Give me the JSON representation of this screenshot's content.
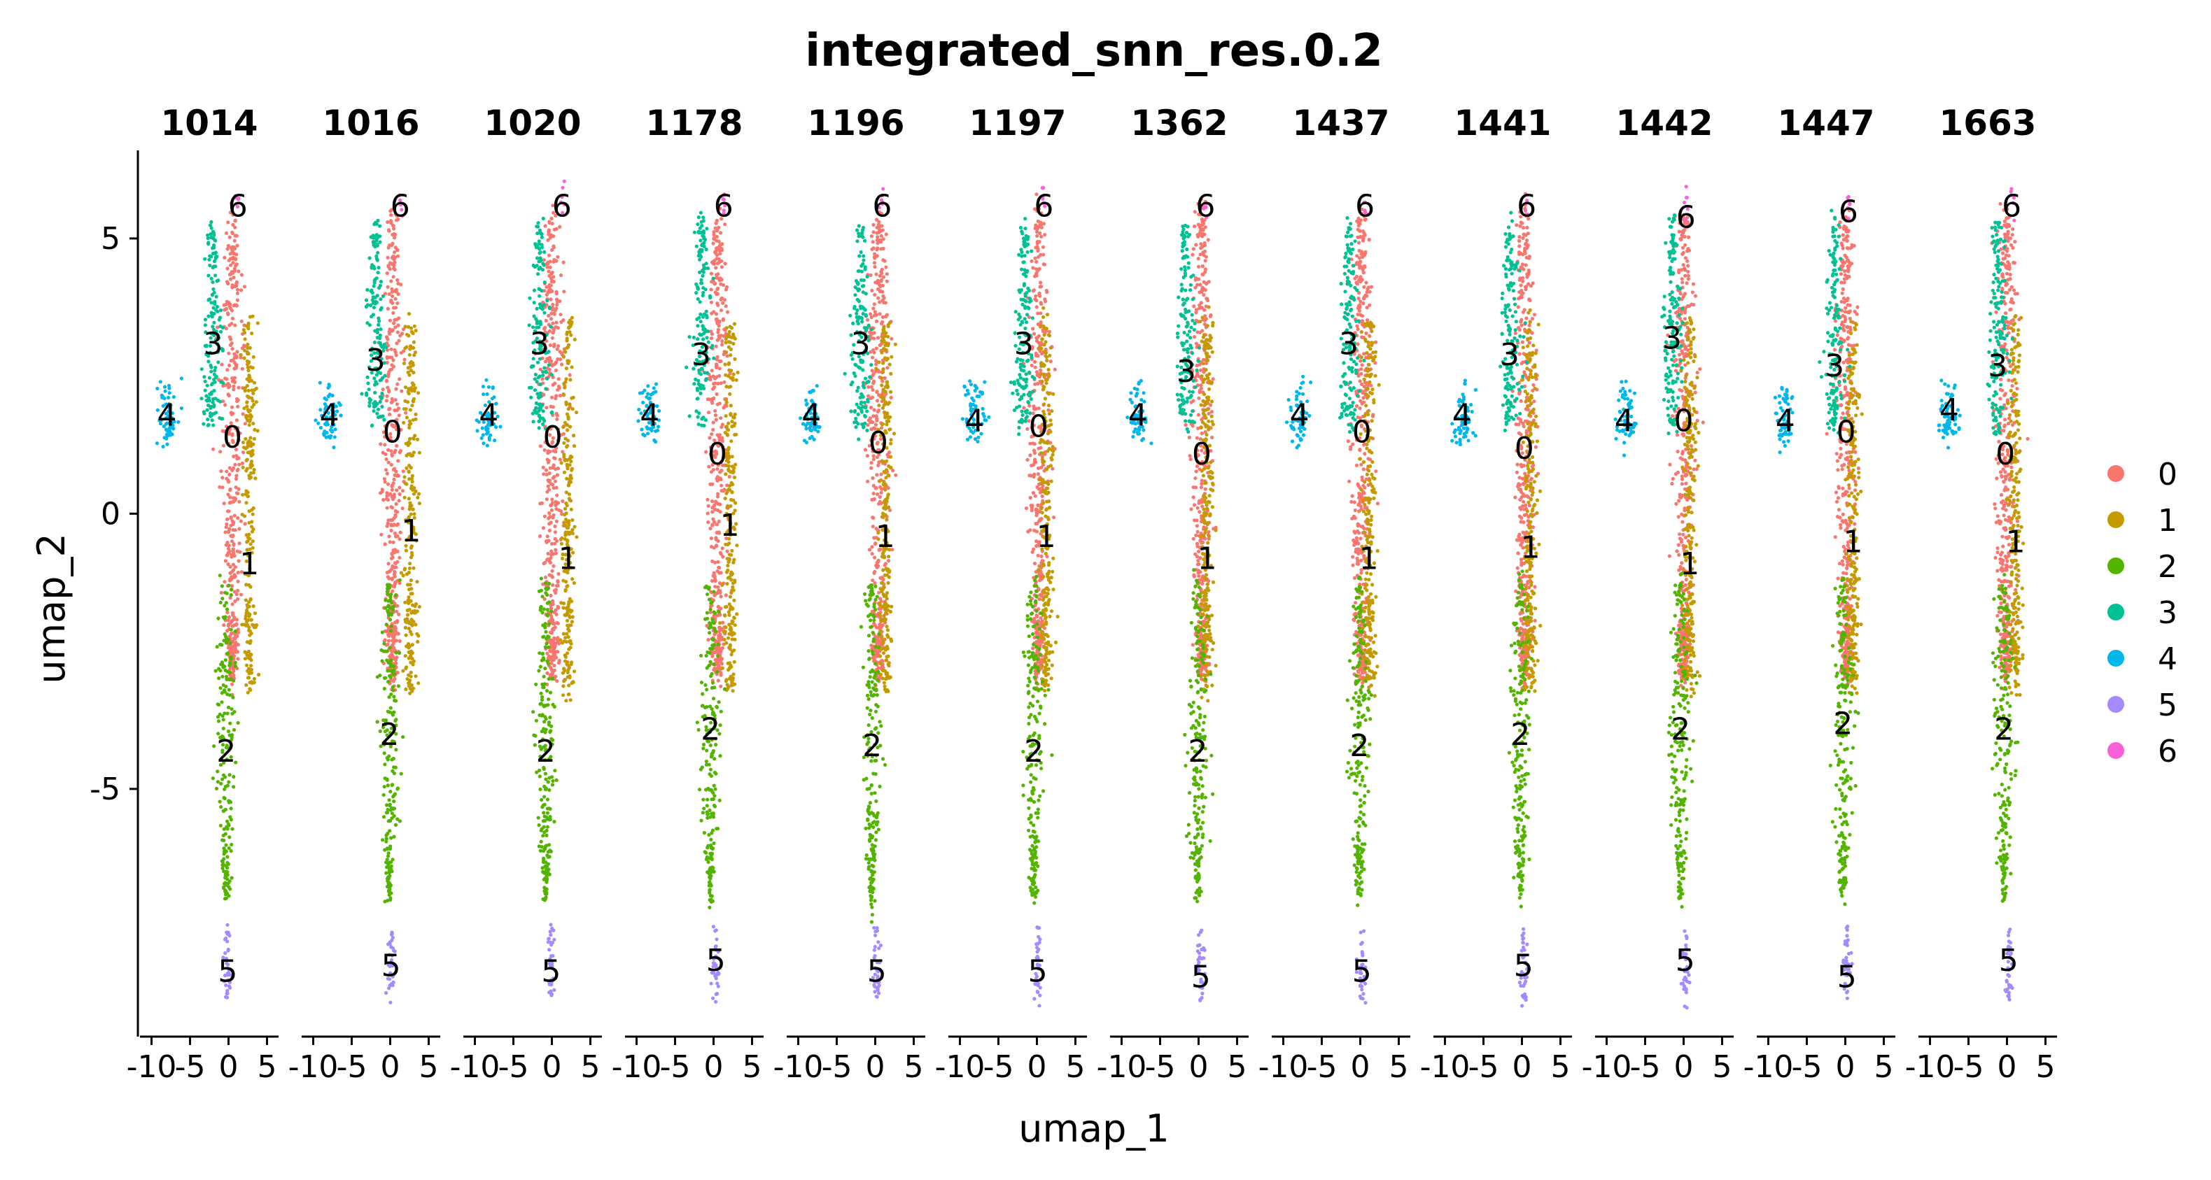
{
  "chart_data": {
    "type": "scatter",
    "title": "integrated_snn_res.0.2",
    "xlabel": "umap_1",
    "ylabel": "umap_2",
    "xlim": [
      -11.5,
      6.5
    ],
    "ylim": [
      -9.5,
      6.6
    ],
    "x_ticks": [
      -10,
      -5,
      0,
      5
    ],
    "x_tick_labels": [
      "-10",
      "-5",
      "0",
      "5"
    ],
    "y_ticks": [
      5,
      0,
      -5
    ],
    "y_tick_labels": [
      "5",
      "0",
      "-5"
    ],
    "grid": false,
    "legend_position": "right",
    "facets": [
      "1014",
      "1016",
      "1020",
      "1178",
      "1196",
      "1197",
      "1362",
      "1437",
      "1441",
      "1442",
      "1447",
      "1663"
    ],
    "series": [
      {
        "name": "0",
        "color": "#F8766D"
      },
      {
        "name": "1",
        "color": "#C49A00"
      },
      {
        "name": "2",
        "color": "#53B400"
      },
      {
        "name": "3",
        "color": "#00C094"
      },
      {
        "name": "4",
        "color": "#00B6EB"
      },
      {
        "name": "5",
        "color": "#A58AFF"
      },
      {
        "name": "6",
        "color": "#FB61D7"
      }
    ],
    "cluster_label_positions": {
      "1014": {
        "0": [
          0.5,
          1.4
        ],
        "1": [
          2.7,
          -0.9
        ],
        "2": [
          -0.3,
          -4.3
        ],
        "3": [
          -2.0,
          3.1
        ],
        "4": [
          -8.0,
          1.8
        ],
        "5": [
          -0.1,
          -8.3
        ],
        "6": [
          1.2,
          5.6
        ]
      },
      "1016": {
        "0": [
          0.3,
          1.5
        ],
        "1": [
          2.7,
          -0.3
        ],
        "2": [
          -0.1,
          -4.0
        ],
        "3": [
          -1.9,
          2.8
        ],
        "4": [
          -7.9,
          1.8
        ],
        "5": [
          0.1,
          -8.2
        ],
        "6": [
          1.3,
          5.6
        ]
      },
      "1020": {
        "0": [
          0.1,
          1.4
        ],
        "1": [
          2.1,
          -0.8
        ],
        "2": [
          -0.8,
          -4.3
        ],
        "3": [
          -1.6,
          3.1
        ],
        "4": [
          -8.2,
          1.8
        ],
        "5": [
          -0.1,
          -8.3
        ],
        "6": [
          1.3,
          5.6
        ]
      },
      "1178": {
        "0": [
          0.5,
          1.1
        ],
        "1": [
          2.1,
          -0.2
        ],
        "2": [
          -0.4,
          -3.9
        ],
        "3": [
          -1.6,
          2.9
        ],
        "4": [
          -8.3,
          1.8
        ],
        "5": [
          0.3,
          -8.1
        ],
        "6": [
          1.3,
          5.6
        ]
      },
      "1196": {
        "0": [
          0.4,
          1.3
        ],
        "1": [
          1.3,
          -0.4
        ],
        "2": [
          -0.4,
          -4.2
        ],
        "3": [
          -1.9,
          3.1
        ],
        "4": [
          -8.3,
          1.8
        ],
        "5": [
          0.2,
          -8.3
        ],
        "6": [
          0.9,
          5.6
        ]
      },
      "1197": {
        "0": [
          0.2,
          1.6
        ],
        "1": [
          1.2,
          -0.4
        ],
        "2": [
          -0.4,
          -4.3
        ],
        "3": [
          -1.7,
          3.1
        ],
        "4": [
          -8.1,
          1.7
        ],
        "5": [
          0.1,
          -8.3
        ],
        "6": [
          0.9,
          5.6
        ]
      },
      "1362": {
        "0": [
          0.4,
          1.1
        ],
        "1": [
          1.1,
          -0.8
        ],
        "2": [
          -0.1,
          -4.3
        ],
        "3": [
          -1.6,
          2.6
        ],
        "4": [
          -7.9,
          1.8
        ],
        "5": [
          0.3,
          -8.4
        ],
        "6": [
          0.9,
          5.6
        ]
      },
      "1437": {
        "0": [
          0.2,
          1.5
        ],
        "1": [
          1.1,
          -0.8
        ],
        "2": [
          -0.1,
          -4.2
        ],
        "3": [
          -1.5,
          3.1
        ],
        "4": [
          -7.9,
          1.8
        ],
        "5": [
          0.2,
          -8.3
        ],
        "6": [
          0.6,
          5.6
        ]
      },
      "1441": {
        "0": [
          0.3,
          1.2
        ],
        "1": [
          1.1,
          -0.6
        ],
        "2": [
          -0.2,
          -4.0
        ],
        "3": [
          -1.6,
          2.9
        ],
        "4": [
          -7.8,
          1.8
        ],
        "5": [
          0.2,
          -8.2
        ],
        "6": [
          0.6,
          5.6
        ]
      },
      "1442": {
        "0": [
          0.0,
          1.7
        ],
        "1": [
          0.8,
          -0.9
        ],
        "2": [
          -0.4,
          -3.9
        ],
        "3": [
          -1.5,
          3.2
        ],
        "4": [
          -7.7,
          1.7
        ],
        "5": [
          0.2,
          -8.1
        ],
        "6": [
          0.3,
          5.4
        ]
      },
      "1447": {
        "0": [
          0.1,
          1.5
        ],
        "1": [
          1.0,
          -0.5
        ],
        "2": [
          -0.3,
          -3.8
        ],
        "3": [
          -1.4,
          2.7
        ],
        "4": [
          -7.8,
          1.7
        ],
        "5": [
          0.2,
          -8.4
        ],
        "6": [
          0.4,
          5.5
        ]
      },
      "1663": {
        "0": [
          -0.2,
          1.1
        ],
        "1": [
          1.1,
          -0.5
        ],
        "2": [
          -0.4,
          -3.9
        ],
        "3": [
          -1.2,
          2.7
        ],
        "4": [
          -7.5,
          1.9
        ],
        "5": [
          0.2,
          -8.1
        ],
        "6": [
          0.6,
          5.6
        ]
      }
    }
  }
}
